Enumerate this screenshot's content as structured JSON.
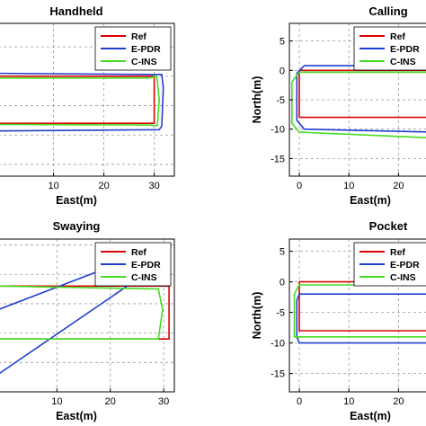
{
  "chart_data": [
    {
      "type": "line",
      "title": "Handheld",
      "xlabel": "East(m)",
      "ylabel": "",
      "xticks": [
        "10",
        "20",
        "30"
      ],
      "yticks": [],
      "xlim": [
        -1,
        34
      ],
      "ylim": [
        -17,
        9
      ],
      "grid": true,
      "legend_position": "top-right",
      "series": [
        {
          "name": "Ref",
          "color": "#dd0000",
          "x": [
            -1,
            30,
            30,
            -1
          ],
          "y": [
            0,
            0,
            -8,
            -8
          ]
        },
        {
          "name": "E-PDR",
          "color": "#1f3fd0",
          "x": [
            -1,
            31.5,
            31.8,
            31.5,
            31,
            -1
          ],
          "y": [
            0.5,
            0.3,
            -2,
            -8.5,
            -9.1,
            -9.3
          ]
        },
        {
          "name": "C-INS",
          "color": "#44dd22",
          "x": [
            -1,
            29,
            30.5,
            31,
            30.6,
            29,
            -1
          ],
          "y": [
            -0.3,
            -0.3,
            0,
            -4,
            -8.4,
            -8.3,
            -8.2
          ]
        }
      ]
    },
    {
      "type": "line",
      "title": "Calling",
      "xlabel": "East(m)",
      "ylabel": "North(m)",
      "xticks": [
        "0",
        "10",
        "20"
      ],
      "yticks": [
        "5",
        "0",
        "-5",
        "-10",
        "-15"
      ],
      "xlim": [
        -2,
        27
      ],
      "ylim": [
        -18,
        8
      ],
      "grid": true,
      "legend_position": "top-right",
      "series": [
        {
          "name": "Ref",
          "color": "#dd0000",
          "x": [
            27,
            0,
            0,
            27
          ],
          "y": [
            0,
            0,
            -8,
            -8
          ]
        },
        {
          "name": "E-PDR",
          "color": "#1f3fd0",
          "x": [
            27,
            1,
            -0.5,
            -0.5,
            1,
            27
          ],
          "y": [
            0.8,
            0.8,
            -0.5,
            -8.5,
            -10,
            -10.5
          ]
        },
        {
          "name": "C-INS",
          "color": "#44dd22",
          "x": [
            27,
            0,
            -1.5,
            -1.5,
            0,
            27
          ],
          "y": [
            -0.3,
            -0.3,
            -2,
            -9,
            -10.5,
            -11.5
          ]
        }
      ]
    },
    {
      "type": "line",
      "title": "Swaying",
      "xlabel": "East(m)",
      "ylabel": "",
      "xticks": [
        "10",
        "20",
        "30"
      ],
      "yticks": [],
      "xlim": [
        -1,
        32
      ],
      "ylim": [
        -20,
        6
      ],
      "grid": true,
      "legend_position": "top-right",
      "series": [
        {
          "name": "Ref",
          "color": "#dd0000",
          "x": [
            -1,
            31,
            31,
            -1
          ],
          "y": [
            -2,
            -2,
            -11,
            -11
          ]
        },
        {
          "name": "E-PDR",
          "color": "#1f3fd0",
          "x": [
            -1,
            22,
            28,
            -1
          ],
          "y": [
            -6,
            2,
            1,
            -17
          ]
        },
        {
          "name": "C-INS",
          "color": "#44dd22",
          "x": [
            -1,
            29,
            29.8,
            29,
            -1
          ],
          "y": [
            -2,
            -2.5,
            -6,
            -11,
            -11
          ]
        }
      ]
    },
    {
      "type": "line",
      "title": "Pocket",
      "xlabel": "East(m)",
      "ylabel": "North(m)",
      "xticks": [
        "0",
        "10",
        "20"
      ],
      "yticks": [
        "5",
        "0",
        "-5",
        "-10",
        "-15"
      ],
      "xlim": [
        -2,
        27
      ],
      "ylim": [
        -18,
        7
      ],
      "grid": true,
      "legend_position": "top-right",
      "series": [
        {
          "name": "Ref",
          "color": "#dd0000",
          "x": [
            27,
            0,
            0,
            27
          ],
          "y": [
            0,
            0,
            -8,
            -8
          ]
        },
        {
          "name": "E-PDR",
          "color": "#1f3fd0",
          "x": [
            27,
            0,
            -0.5,
            -0.5,
            0,
            27
          ],
          "y": [
            -2,
            -2,
            -3,
            -9,
            -10,
            -10
          ]
        },
        {
          "name": "C-INS",
          "color": "#44dd22",
          "x": [
            27,
            0,
            -1,
            -1,
            0,
            27
          ],
          "y": [
            -0.5,
            -0.5,
            -2,
            -9,
            -9,
            -9
          ]
        }
      ]
    }
  ]
}
